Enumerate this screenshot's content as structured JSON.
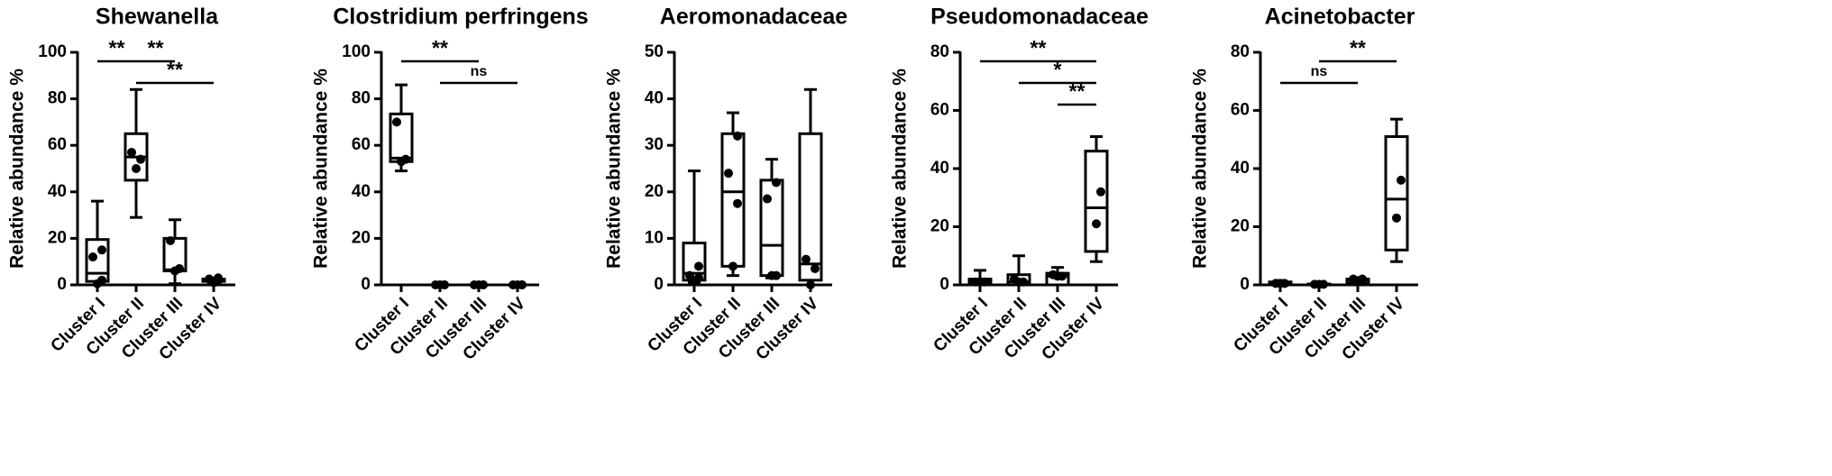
{
  "chart_data": [
    {
      "type": "box",
      "title": "Shewanella",
      "y_label": "Relative abundance %",
      "categories": [
        "Cluster I",
        "Cluster II",
        "Cluster III",
        "Cluster IV"
      ],
      "ylim": [
        0,
        100
      ],
      "yticks": [
        0,
        20,
        40,
        60,
        80,
        100
      ],
      "boxes": [
        {
          "min": 0,
          "q1": 1.5,
          "median": 5,
          "q3": 19.5,
          "max": 36,
          "points": [
            0.5,
            2,
            12,
            15
          ]
        },
        {
          "min": 29,
          "q1": 45,
          "median": 55,
          "q3": 65,
          "max": 84,
          "points": [
            50,
            54,
            57
          ]
        },
        {
          "min": 0.5,
          "q1": 6,
          "median": 6.5,
          "q3": 20,
          "max": 28,
          "points": [
            6,
            7,
            19
          ]
        },
        {
          "min": 1,
          "q1": 1.5,
          "median": 2,
          "q3": 2.5,
          "max": 3,
          "points": [
            1,
            2,
            2.5,
            3
          ]
        }
      ],
      "annotations": [
        {
          "label": "**",
          "from": "Cluster I",
          "to": "Cluster II"
        },
        {
          "label": "**",
          "from": "Cluster II",
          "to": "Cluster III"
        },
        {
          "label": "**",
          "from": "Cluster II",
          "to": "Cluster IV"
        }
      ]
    },
    {
      "type": "box",
      "title": "Clostridium perfringens",
      "y_label": "Relative abundance %",
      "categories": [
        "Cluster I",
        "Cluster II",
        "Cluster III",
        "Cluster IV"
      ],
      "ylim": [
        0,
        100
      ],
      "yticks": [
        0,
        20,
        40,
        60,
        80,
        100
      ],
      "boxes": [
        {
          "min": 49,
          "q1": 53,
          "median": 54.5,
          "q3": 73.5,
          "max": 86,
          "points": [
            53,
            54,
            70
          ]
        },
        {
          "min": 0,
          "q1": 0,
          "median": 0,
          "q3": 0,
          "max": 0,
          "points": [
            0,
            0,
            0,
            0
          ]
        },
        {
          "min": 0,
          "q1": 0,
          "median": 0,
          "q3": 0,
          "max": 0,
          "points": [
            0,
            0,
            0,
            0
          ]
        },
        {
          "min": 0,
          "q1": 0,
          "median": 0,
          "q3": 0,
          "max": 0,
          "points": [
            0,
            0,
            0,
            0
          ]
        }
      ],
      "annotations": [
        {
          "label": "**",
          "from": "Cluster I",
          "to": "Cluster III"
        },
        {
          "label": "ns",
          "from": "Cluster II",
          "to": "Cluster IV"
        }
      ]
    },
    {
      "type": "box",
      "title": "Aeromonadaceae",
      "y_label": "Relative abundance %",
      "categories": [
        "Cluster I",
        "Cluster II",
        "Cluster III",
        "Cluster IV"
      ],
      "ylim": [
        0,
        50
      ],
      "yticks": [
        0,
        10,
        20,
        30,
        40,
        50
      ],
      "boxes": [
        {
          "min": 0.5,
          "q1": 1,
          "median": 2.5,
          "q3": 9,
          "max": 24.5,
          "points": [
            1,
            1.5,
            2,
            4
          ]
        },
        {
          "min": 2,
          "q1": 4,
          "median": 20,
          "q3": 32.5,
          "max": 37,
          "points": [
            4,
            17.5,
            24,
            32
          ]
        },
        {
          "min": 1.5,
          "q1": 2,
          "median": 8.5,
          "q3": 22.5,
          "max": 27,
          "points": [
            2,
            2,
            18.5,
            22
          ]
        },
        {
          "min": 0,
          "q1": 1,
          "median": 4.5,
          "q3": 32.5,
          "max": 42,
          "points": [
            0,
            3.5,
            5.5
          ]
        }
      ],
      "annotations": []
    },
    {
      "type": "box",
      "title": "Pseudomonadaceae",
      "y_label": "Relative abundance %",
      "categories": [
        "Cluster I",
        "Cluster II",
        "Cluster III",
        "Cluster IV"
      ],
      "ylim": [
        0,
        80
      ],
      "yticks": [
        0,
        20,
        40,
        60,
        80
      ],
      "boxes": [
        {
          "min": 0,
          "q1": 0.5,
          "median": 1.5,
          "q3": 2,
          "max": 5,
          "points": [
            1,
            1,
            1
          ]
        },
        {
          "min": 0,
          "q1": 0,
          "median": 1,
          "q3": 3.5,
          "max": 10,
          "points": [
            1,
            1,
            2
          ]
        },
        {
          "min": 0,
          "q1": 0,
          "median": 3,
          "q3": 4,
          "max": 6,
          "points": [
            3,
            3,
            3.5
          ]
        },
        {
          "min": 8,
          "q1": 11.5,
          "median": 26.5,
          "q3": 46,
          "max": 51,
          "points": [
            21,
            32
          ]
        }
      ],
      "annotations": [
        {
          "label": "**",
          "from": "Cluster I",
          "to": "Cluster IV"
        },
        {
          "label": "*",
          "from": "Cluster II",
          "to": "Cluster IV"
        },
        {
          "label": "**",
          "from": "Cluster III",
          "to": "Cluster IV"
        }
      ]
    },
    {
      "type": "box",
      "title": "Acinetobacter",
      "y_label": "Relative abundance %",
      "categories": [
        "Cluster I",
        "Cluster II",
        "Cluster III",
        "Cluster IV"
      ],
      "ylim": [
        0,
        80
      ],
      "yticks": [
        0,
        20,
        40,
        60,
        80
      ],
      "boxes": [
        {
          "min": 0,
          "q1": 0,
          "median": 0.5,
          "q3": 1,
          "max": 1.5,
          "points": [
            0.5,
            0.5,
            0.5
          ]
        },
        {
          "min": 0,
          "q1": 0,
          "median": 0.2,
          "q3": 0.3,
          "max": 0.5,
          "points": [
            0.2,
            0.2,
            0.2
          ]
        },
        {
          "min": 0,
          "q1": 0.5,
          "median": 1.5,
          "q3": 2,
          "max": 2.5,
          "points": [
            1,
            2,
            2
          ]
        },
        {
          "min": 8,
          "q1": 12,
          "median": 29.5,
          "q3": 51,
          "max": 57,
          "points": [
            23,
            36
          ]
        }
      ],
      "annotations": [
        {
          "label": "**",
          "from": "Cluster II",
          "to": "Cluster IV"
        },
        {
          "label": "ns",
          "from": "Cluster I",
          "to": "Cluster III"
        }
      ]
    }
  ]
}
